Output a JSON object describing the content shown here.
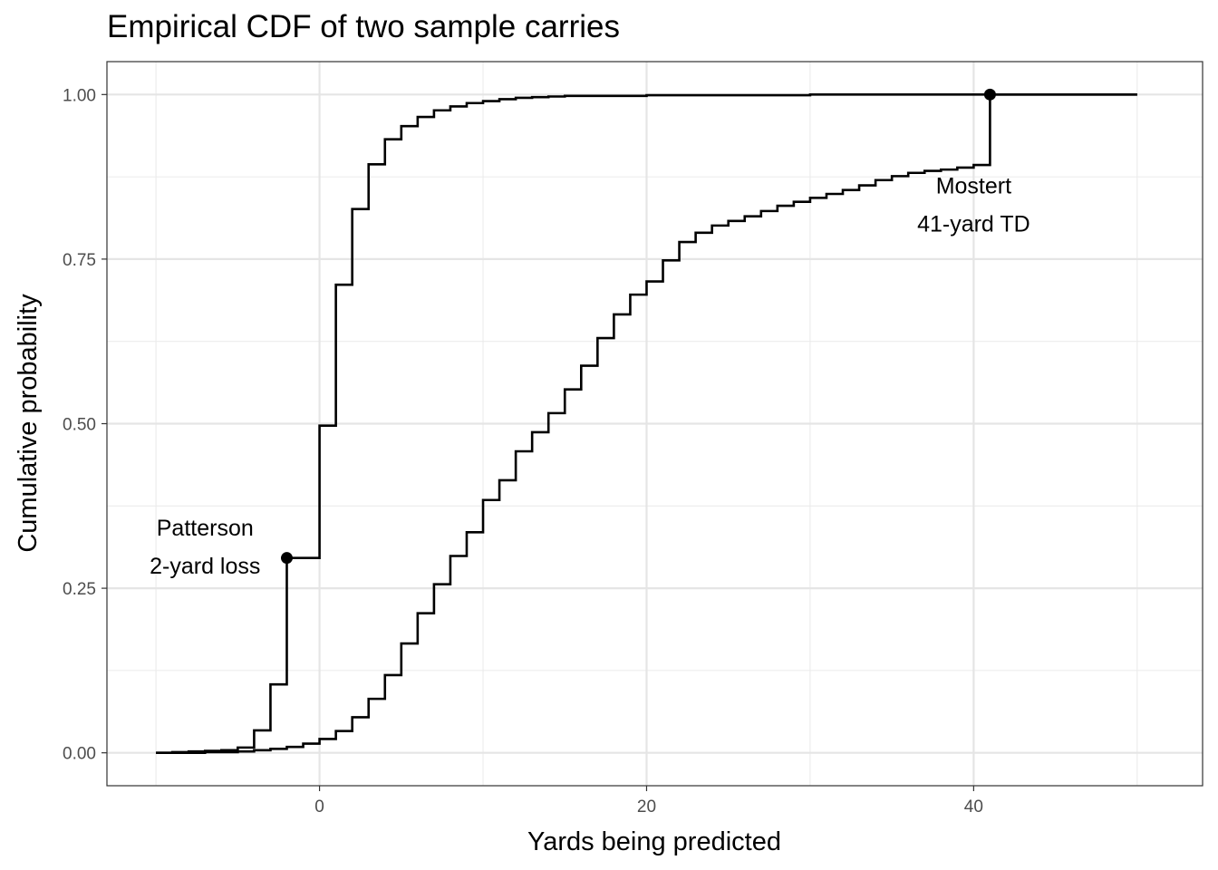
{
  "chart_data": {
    "type": "line",
    "title": "Empirical CDF of two sample carries",
    "xlabel": "Yards being predicted",
    "ylabel": "Cumulative probability",
    "xlim": [
      -13,
      54
    ],
    "ylim": [
      -0.05,
      1.05
    ],
    "x_ticks": [
      0,
      20,
      40
    ],
    "x_tick_labels": [
      "0",
      "20",
      "40"
    ],
    "y_ticks": [
      0,
      0.25,
      0.5,
      0.75,
      1.0
    ],
    "y_tick_labels": [
      "0.00",
      "0.25",
      "0.50",
      "0.75",
      "1.00"
    ],
    "grid": true,
    "legend": "none",
    "line_color": "#000000",
    "series": [
      {
        "x": [
          -10,
          -9,
          -8,
          -7,
          -6,
          -5,
          -4,
          -3,
          -2,
          -1,
          0,
          1,
          2,
          3,
          4,
          5,
          6,
          7,
          8,
          9,
          10,
          11,
          12,
          13,
          14,
          15,
          20,
          30,
          40,
          50
        ],
        "values": [
          0.0,
          0.001,
          0.002,
          0.003,
          0.004,
          0.008,
          0.034,
          0.104,
          0.296,
          0.296,
          0.497,
          0.711,
          0.826,
          0.894,
          0.932,
          0.952,
          0.966,
          0.976,
          0.982,
          0.987,
          0.99,
          0.993,
          0.995,
          0.996,
          0.997,
          0.998,
          0.999,
          1.0,
          1.0,
          1.0
        ]
      },
      {
        "x": [
          -10,
          -9,
          -8,
          -7,
          -6,
          -5,
          -4,
          -3,
          -2,
          -1,
          0,
          1,
          2,
          3,
          4,
          5,
          6,
          7,
          8,
          9,
          10,
          11,
          12,
          13,
          14,
          15,
          16,
          17,
          18,
          19,
          20,
          21,
          22,
          23,
          24,
          25,
          26,
          27,
          28,
          29,
          30,
          31,
          32,
          33,
          34,
          35,
          36,
          37,
          38,
          39,
          40,
          41,
          42,
          50
        ],
        "values": [
          0.0,
          0.0,
          0.0,
          0.001,
          0.001,
          0.002,
          0.004,
          0.006,
          0.009,
          0.014,
          0.021,
          0.033,
          0.054,
          0.082,
          0.118,
          0.166,
          0.212,
          0.256,
          0.299,
          0.335,
          0.384,
          0.414,
          0.458,
          0.487,
          0.516,
          0.552,
          0.588,
          0.63,
          0.666,
          0.696,
          0.716,
          0.748,
          0.776,
          0.79,
          0.801,
          0.808,
          0.815,
          0.823,
          0.831,
          0.837,
          0.843,
          0.849,
          0.855,
          0.862,
          0.87,
          0.876,
          0.881,
          0.884,
          0.886,
          0.889,
          0.893,
          1.0,
          1.0,
          1.0
        ]
      }
    ],
    "points": [
      {
        "x": -2,
        "y": 0.296
      },
      {
        "x": 41,
        "y": 1.0
      }
    ],
    "annotations": [
      {
        "lines": [
          "Patterson",
          "2-yard loss"
        ],
        "x": -7,
        "y": 0.33
      },
      {
        "lines": [
          "Mostert",
          "41-yard TD"
        ],
        "x": 40,
        "y": 0.85
      }
    ]
  }
}
